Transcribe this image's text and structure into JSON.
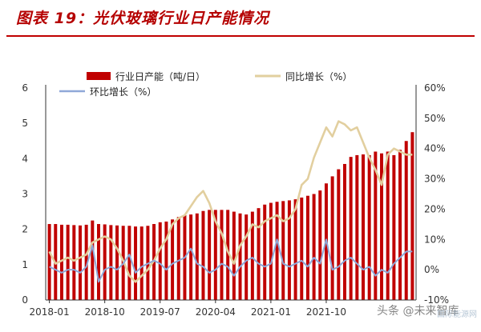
{
  "title": "图表 19：光伏玻璃行业日产能情况",
  "watermark": "头条 @未来智库",
  "watermark_small": "国际能源网",
  "colors": {
    "bar": "#c00000",
    "yoy": "#e2cf9f",
    "mom": "#8fa8d8",
    "title": "#b50000"
  },
  "chart_data": {
    "type": "bar",
    "legend": [
      {
        "name": "行业日产能（吨/日）",
        "kind": "bar"
      },
      {
        "name": "同比增长（%）",
        "kind": "line"
      },
      {
        "name": "环比增长（%）",
        "kind": "line"
      }
    ],
    "x_tick_labels": [
      "2018-01",
      "2018-10",
      "2019-07",
      "2020-04",
      "2021-01",
      "2021-10"
    ],
    "x_tick_index": [
      0,
      9,
      18,
      27,
      36,
      45
    ],
    "y_left": {
      "min": 0,
      "max": 6,
      "ticks": [
        "0",
        "1",
        "2",
        "3",
        "4",
        "5",
        "6"
      ]
    },
    "y_right": {
      "min": -10,
      "max": 60,
      "ticks": [
        "-10%",
        "0%",
        "10%",
        "20%",
        "30%",
        "40%",
        "50%",
        "60%"
      ]
    },
    "series": [
      {
        "name": "行业日产能（吨/日）",
        "axis": "left",
        "values": [
          2.15,
          2.15,
          2.13,
          2.13,
          2.12,
          2.11,
          2.13,
          2.25,
          2.15,
          2.14,
          2.12,
          2.11,
          2.1,
          2.1,
          2.08,
          2.08,
          2.1,
          2.15,
          2.2,
          2.22,
          2.28,
          2.35,
          2.4,
          2.42,
          2.45,
          2.52,
          2.55,
          2.55,
          2.55,
          2.55,
          2.5,
          2.45,
          2.42,
          2.5,
          2.6,
          2.7,
          2.75,
          2.78,
          2.8,
          2.82,
          2.85,
          2.9,
          2.95,
          3.0,
          3.1,
          3.3,
          3.5,
          3.7,
          3.85,
          4.05,
          4.1,
          4.12,
          4.1,
          4.2,
          4.15,
          4.2,
          4.1,
          4.25,
          4.5,
          4.75
        ]
      },
      {
        "name": "同比增长（%）",
        "axis": "right",
        "values": [
          6,
          2,
          3,
          4,
          3,
          4,
          5,
          9,
          10,
          11,
          10,
          7,
          3,
          -2,
          -4,
          -2,
          0,
          3,
          7,
          10,
          15,
          17,
          18,
          21,
          24,
          26,
          22,
          16,
          12,
          6,
          2,
          8,
          11,
          15,
          14,
          16,
          17,
          18,
          16,
          17,
          20,
          28,
          30,
          37,
          42,
          47,
          44,
          49,
          48,
          46,
          47,
          42,
          37,
          33,
          28,
          38,
          40,
          39,
          38,
          38
        ]
      },
      {
        "name": "环比增长（%）",
        "axis": "right",
        "values": [
          1,
          0,
          -1,
          0,
          0,
          -1,
          1,
          8,
          -4,
          0,
          1,
          0,
          2,
          5,
          -1,
          1,
          2,
          3,
          2,
          0,
          2,
          3,
          4,
          7,
          2,
          1,
          -1,
          0,
          2,
          1,
          -2,
          1,
          3,
          4,
          2,
          1,
          2,
          10,
          2,
          1,
          2,
          3,
          1,
          4,
          2,
          10,
          0,
          1,
          3,
          4,
          2,
          0,
          1,
          -2,
          0,
          -1,
          2,
          4,
          6,
          6
        ]
      }
    ]
  }
}
